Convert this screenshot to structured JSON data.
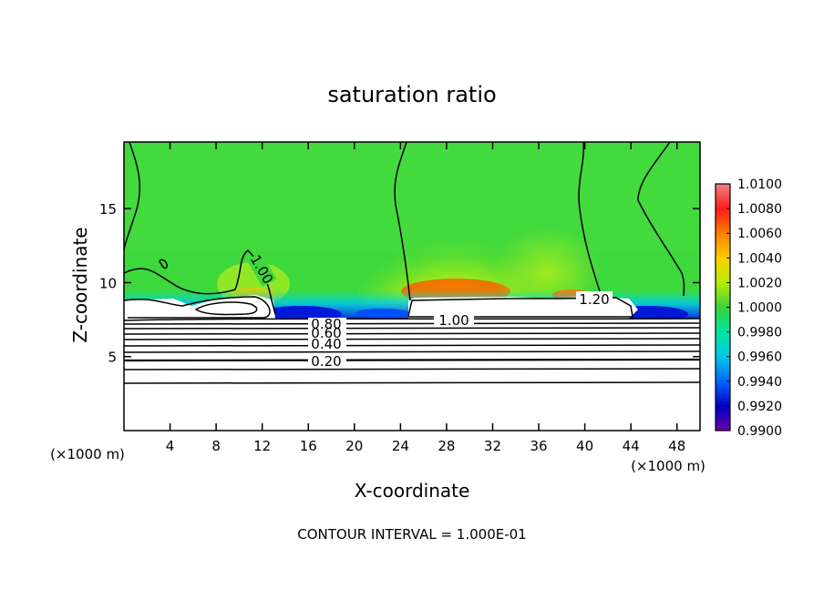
{
  "chart_data": {
    "type": "heatmap",
    "title": "saturation ratio",
    "xlabel": "X-coordinate",
    "ylabel": "Z-coordinate",
    "x_unit": "(×1000 m)",
    "y_unit": "(×1000 m)",
    "xlim": [
      0,
      50
    ],
    "ylim": [
      0,
      19.5
    ],
    "x_ticks": [
      4,
      8,
      12,
      16,
      20,
      24,
      28,
      32,
      36,
      40,
      44,
      48
    ],
    "y_ticks": [
      5,
      10,
      15
    ],
    "footer": "CONTOUR INTERVAL = 1.000E-01",
    "colorbar": {
      "levels": [
        "1.0100",
        "1.0080",
        "1.0060",
        "1.0040",
        "1.0020",
        "1.0000",
        "0.9980",
        "0.9960",
        "0.9940",
        "0.9920",
        "0.9900"
      ],
      "colors": [
        "#f08080",
        "#ff1a1a",
        "#ff8000",
        "#ffd000",
        "#b4ee00",
        "#3cd23c",
        "#00e6a0",
        "#00c8e6",
        "#0064ff",
        "#0000c8",
        "#6a00a8"
      ]
    },
    "contour_labels": [
      "1.00",
      "1.20",
      "1.00",
      "0.80",
      "0.60",
      "0.40",
      "0.20"
    ]
  }
}
